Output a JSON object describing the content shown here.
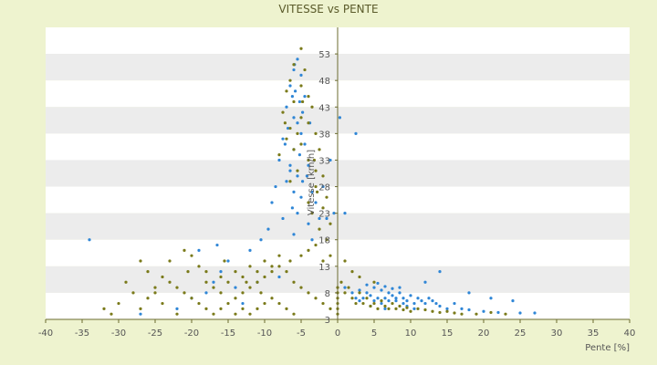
{
  "chart_data": {
    "type": "scatter",
    "title": "VITESSE vs PENTE",
    "xlabel": "Pente [%]",
    "ylabel": "Vitesse [km/h]",
    "xlim": [
      -40,
      40
    ],
    "ylim": [
      3,
      58
    ],
    "x_ticks": [
      "-40",
      "-35",
      "-30",
      "-25",
      "-20",
      "-15",
      "-10",
      "-5",
      "0",
      "5",
      "10",
      "15",
      "20",
      "25",
      "30",
      "35",
      "40"
    ],
    "y_ticks": [
      "3",
      "8",
      "13",
      "18",
      "23",
      "28",
      "33",
      "38",
      "43",
      "48",
      "53"
    ],
    "grid": true,
    "legend": "none",
    "colors": {
      "background": "#eef3cf",
      "band_light": "#ffffff",
      "band_dark": "#ececec",
      "series_blue": "#2f86d6",
      "series_olive": "#7a7a1a",
      "axis": "#6b6b2f"
    },
    "series": [
      {
        "color": "#2f86d6",
        "points": [
          [
            -5.5,
            52
          ],
          [
            -6,
            50
          ],
          [
            -5,
            49
          ],
          [
            -6.5,
            47
          ],
          [
            -5.8,
            46
          ],
          [
            -6.2,
            45
          ],
          [
            -5.2,
            44
          ],
          [
            -7,
            43
          ],
          [
            -4.8,
            42
          ],
          [
            -6,
            41
          ],
          [
            -5.5,
            40
          ],
          [
            -6.8,
            39
          ],
          [
            -5,
            38
          ],
          [
            -7.5,
            37
          ],
          [
            -4.5,
            36
          ],
          [
            -6,
            35
          ],
          [
            -5.2,
            34
          ],
          [
            -8,
            33
          ],
          [
            -4,
            32
          ],
          [
            -6.5,
            31
          ],
          [
            -5.5,
            30
          ],
          [
            -7,
            29
          ],
          [
            -4.8,
            29
          ],
          [
            -8.5,
            28
          ],
          [
            -3.5,
            27
          ],
          [
            -6,
            27
          ],
          [
            -5,
            26
          ],
          [
            -9,
            25
          ],
          [
            -3,
            25
          ],
          [
            -6.2,
            24
          ],
          [
            -5.5,
            23
          ],
          [
            -7.5,
            22
          ],
          [
            -2.5,
            22
          ],
          [
            -1.5,
            22
          ],
          [
            -0.5,
            23
          ],
          [
            1,
            23
          ],
          [
            -4,
            21
          ],
          [
            -9.5,
            20
          ],
          [
            -6,
            19
          ],
          [
            -10.5,
            18
          ],
          [
            -3.5,
            18
          ],
          [
            -12,
            16
          ],
          [
            -15,
            14
          ],
          [
            -16,
            12
          ],
          [
            -17,
            10
          ],
          [
            -14,
            9
          ],
          [
            -18,
            8
          ],
          [
            -20,
            7
          ],
          [
            -13,
            6
          ],
          [
            -11,
            10
          ],
          [
            -8,
            11
          ],
          [
            -22,
            5
          ],
          [
            -27,
            4
          ],
          [
            -34,
            18
          ],
          [
            -19,
            16
          ],
          [
            -16.5,
            17
          ],
          [
            2.5,
            38
          ],
          [
            0.3,
            41
          ],
          [
            -1,
            33
          ],
          [
            -2,
            28
          ],
          [
            1,
            9
          ],
          [
            2,
            8
          ],
          [
            3,
            8.5
          ],
          [
            4,
            8
          ],
          [
            4.5,
            7.5
          ],
          [
            5,
            9
          ],
          [
            5.5,
            7
          ],
          [
            6,
            8.5
          ],
          [
            6.5,
            7
          ],
          [
            7,
            8
          ],
          [
            7.5,
            7.5
          ],
          [
            8,
            6.5
          ],
          [
            8.5,
            8
          ],
          [
            9,
            7
          ],
          [
            9.5,
            6.5
          ],
          [
            10,
            7.5
          ],
          [
            10.5,
            6
          ],
          [
            11,
            7
          ],
          [
            11.5,
            6.5
          ],
          [
            12,
            6
          ],
          [
            3.5,
            7
          ],
          [
            5,
            6.5
          ],
          [
            6,
            6
          ],
          [
            7,
            6.5
          ],
          [
            8,
            7
          ],
          [
            9,
            6
          ],
          [
            4,
            9.5
          ],
          [
            5.5,
            9.8
          ],
          [
            6.5,
            9.2
          ],
          [
            7.5,
            8.8
          ],
          [
            8.5,
            9
          ],
          [
            3,
            6.5
          ],
          [
            2.5,
            7
          ],
          [
            12.5,
            7
          ],
          [
            13,
            6.5
          ],
          [
            13.5,
            6
          ],
          [
            14,
            5.5
          ],
          [
            15,
            5
          ],
          [
            16,
            6
          ],
          [
            17,
            5
          ],
          [
            18,
            4.8
          ],
          [
            20,
            4.5
          ],
          [
            22,
            4.3
          ],
          [
            25,
            4.2
          ],
          [
            27,
            4.2
          ],
          [
            14,
            12
          ],
          [
            18,
            8
          ],
          [
            21,
            7
          ],
          [
            24,
            6.5
          ],
          [
            12,
            10
          ],
          [
            9.5,
            5.5
          ],
          [
            10.5,
            5
          ],
          [
            4.5,
            5.5
          ],
          [
            6.5,
            5
          ],
          [
            -4.5,
            45
          ],
          [
            -6.5,
            32
          ],
          [
            -7.2,
            36
          ],
          [
            -3.8,
            40
          ],
          [
            -5.9,
            51
          ],
          [
            -4.2,
            30
          ]
        ]
      },
      {
        "color": "#7a7a1a",
        "points": [
          [
            -5,
            54
          ],
          [
            -6,
            51
          ],
          [
            -4.5,
            50
          ],
          [
            -6.5,
            48
          ],
          [
            -5,
            47
          ],
          [
            -7,
            46
          ],
          [
            -4,
            45
          ],
          [
            -6,
            44
          ],
          [
            -3.5,
            43
          ],
          [
            -7.5,
            42
          ],
          [
            -5,
            41
          ],
          [
            -4,
            40
          ],
          [
            -6.5,
            39
          ],
          [
            -3,
            38
          ],
          [
            -7,
            37
          ],
          [
            -5,
            36
          ],
          [
            -2.5,
            35
          ],
          [
            -8,
            34
          ],
          [
            -4,
            33
          ],
          [
            -3,
            31
          ],
          [
            -5.5,
            31
          ],
          [
            -2,
            30
          ],
          [
            -6.5,
            29
          ],
          [
            -3,
            28
          ],
          [
            -1.5,
            26
          ],
          [
            -4,
            25
          ],
          [
            -2,
            24
          ],
          [
            -3.5,
            23
          ],
          [
            -1,
            21
          ],
          [
            -2.5,
            20
          ],
          [
            -1.5,
            18
          ],
          [
            -3,
            17
          ],
          [
            -1,
            15
          ],
          [
            -2,
            14
          ],
          [
            -4,
            16
          ],
          [
            -5,
            15
          ],
          [
            -6.5,
            14
          ],
          [
            -8,
            13
          ],
          [
            -9,
            12
          ],
          [
            -10,
            11
          ],
          [
            -11,
            10
          ],
          [
            -12,
            9
          ],
          [
            -13,
            8
          ],
          [
            -14,
            7
          ],
          [
            -15,
            6
          ],
          [
            -16,
            5
          ],
          [
            -17,
            4
          ],
          [
            -18,
            5
          ],
          [
            -19,
            6
          ],
          [
            -20,
            7
          ],
          [
            -21,
            8
          ],
          [
            -22,
            9
          ],
          [
            -23,
            10
          ],
          [
            -24,
            11
          ],
          [
            -25,
            9
          ],
          [
            -26,
            7
          ],
          [
            -27,
            5
          ],
          [
            -28,
            8
          ],
          [
            -29,
            10
          ],
          [
            -30,
            6
          ],
          [
            -31,
            4
          ],
          [
            -32,
            5
          ],
          [
            -20,
            15
          ],
          [
            -19,
            13
          ],
          [
            -18,
            12
          ],
          [
            -16,
            11
          ],
          [
            -15,
            10
          ],
          [
            -14,
            12
          ],
          [
            -13,
            11
          ],
          [
            -12,
            13
          ],
          [
            -11,
            12
          ],
          [
            -10,
            14
          ],
          [
            -9,
            13
          ],
          [
            -8,
            15
          ],
          [
            -7,
            12
          ],
          [
            -6,
            10
          ],
          [
            -5,
            9
          ],
          [
            -4,
            8
          ],
          [
            -3,
            7
          ],
          [
            -2,
            6
          ],
          [
            -1,
            5
          ],
          [
            -10,
            6
          ],
          [
            -11,
            5
          ],
          [
            -12,
            4
          ],
          [
            -9,
            7
          ],
          [
            -8,
            6
          ],
          [
            -7,
            5
          ],
          [
            -6,
            4
          ],
          [
            -16,
            8
          ],
          [
            -17,
            9
          ],
          [
            -18,
            10
          ],
          [
            -14,
            4
          ],
          [
            -13,
            5
          ],
          [
            -22,
            4
          ],
          [
            -24,
            6
          ],
          [
            -26,
            12
          ],
          [
            -27,
            14
          ],
          [
            -21,
            16
          ],
          [
            -23,
            14
          ],
          [
            -25,
            8
          ],
          [
            0.5,
            10
          ],
          [
            1,
            8
          ],
          [
            1.5,
            9
          ],
          [
            2,
            7
          ],
          [
            2.5,
            6
          ],
          [
            3,
            8
          ],
          [
            3.5,
            6
          ],
          [
            4,
            7
          ],
          [
            4.5,
            5.5
          ],
          [
            5,
            6
          ],
          [
            5.5,
            5
          ],
          [
            6,
            6.5
          ],
          [
            6.5,
            5.5
          ],
          [
            7,
            5
          ],
          [
            7.5,
            6
          ],
          [
            8,
            5
          ],
          [
            8.5,
            5.5
          ],
          [
            9,
            4.8
          ],
          [
            9.5,
            5.2
          ],
          [
            10,
            4.5
          ],
          [
            11,
            5
          ],
          [
            12,
            4.8
          ],
          [
            13,
            4.5
          ],
          [
            14,
            4.3
          ],
          [
            15,
            4.5
          ],
          [
            16,
            4.2
          ],
          [
            17,
            4
          ],
          [
            19,
            4
          ],
          [
            21,
            4.3
          ],
          [
            23,
            4
          ],
          [
            3,
            11
          ],
          [
            5,
            10
          ],
          [
            2,
            12
          ],
          [
            1,
            14
          ],
          [
            0,
            4
          ],
          [
            0,
            5
          ],
          [
            0,
            6
          ],
          [
            0,
            7
          ],
          [
            0,
            8
          ],
          [
            0,
            9
          ],
          [
            -5.5,
            38
          ],
          [
            -6,
            35
          ],
          [
            -4.8,
            44
          ],
          [
            -7.2,
            40
          ],
          [
            -3.2,
            33
          ],
          [
            -2.8,
            27
          ],
          [
            -15.5,
            14
          ],
          [
            -12.5,
            10
          ],
          [
            -10.5,
            8
          ],
          [
            -20.5,
            12
          ]
        ]
      }
    ]
  }
}
